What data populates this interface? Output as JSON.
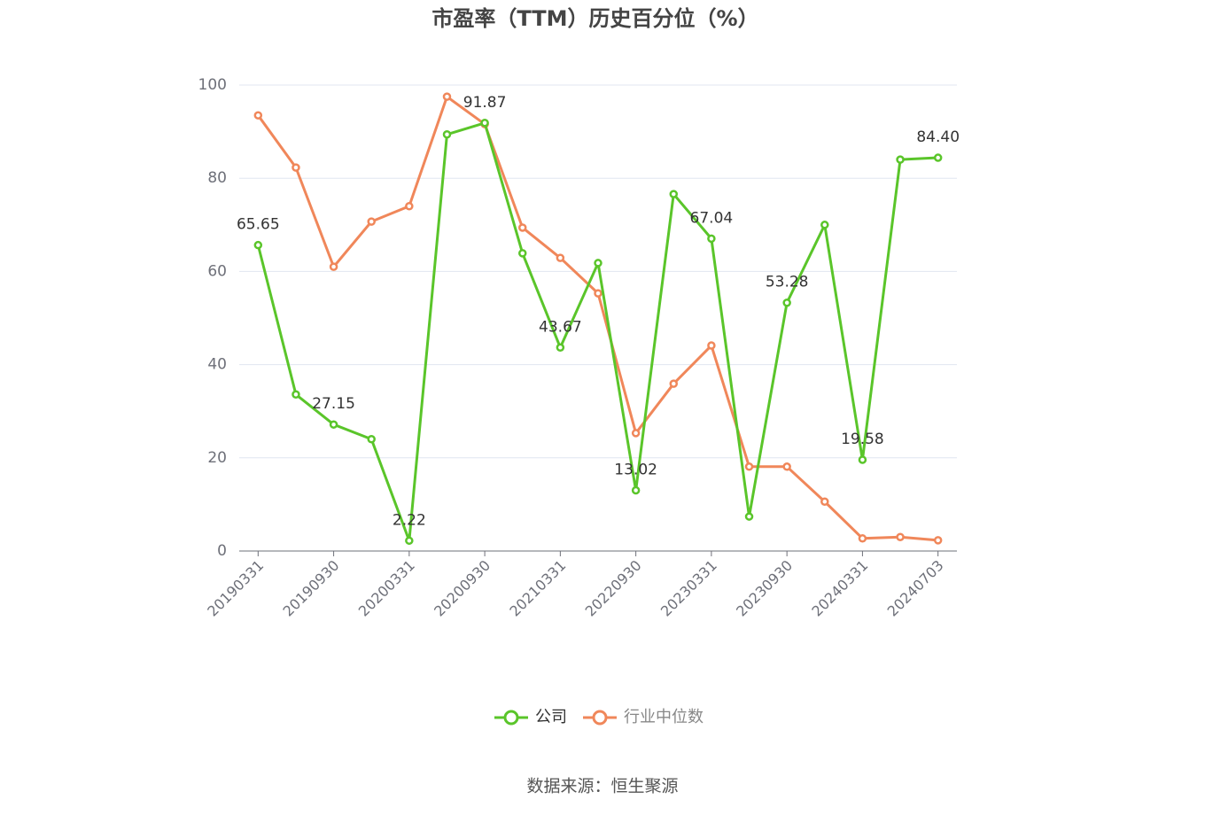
{
  "chart_data": {
    "type": "line",
    "title": "市盈率（TTM）历史百分位（%）",
    "source": "数据来源：恒生聚源",
    "categories": [
      "20190331",
      null,
      "20190930",
      null,
      "20200331",
      null,
      "20200930",
      null,
      "20210331",
      null,
      "20220930",
      null,
      "20230331",
      null,
      "20230930",
      null,
      "20240331",
      null,
      "20240703"
    ],
    "ylim": [
      0,
      100
    ],
    "yticks": [
      0,
      20,
      40,
      60,
      80,
      100
    ],
    "grid": true,
    "series": [
      {
        "name": "公司",
        "color": "#5ac52a",
        "values": [
          65.65,
          33.6,
          27.15,
          24.0,
          2.22,
          89.4,
          91.87,
          63.9,
          43.67,
          61.8,
          13.02,
          76.6,
          67.04,
          7.4,
          53.28,
          70.0,
          19.58,
          84.0,
          84.4
        ],
        "value_labels": [
          "65.65",
          null,
          "27.15",
          null,
          "2.22",
          null,
          "91.87",
          null,
          "43.67",
          null,
          "13.02",
          null,
          "67.04",
          null,
          "53.28",
          null,
          "19.58",
          null,
          "84.40"
        ]
      },
      {
        "name": "行业中位数",
        "color": "#f0875a",
        "values": [
          93.5,
          82.3,
          61.0,
          70.7,
          74.0,
          97.5,
          91.6,
          69.4,
          62.9,
          55.3,
          25.3,
          35.9,
          44.1,
          18.1,
          18.1,
          10.6,
          2.7,
          3.0,
          2.3
        ]
      }
    ]
  }
}
